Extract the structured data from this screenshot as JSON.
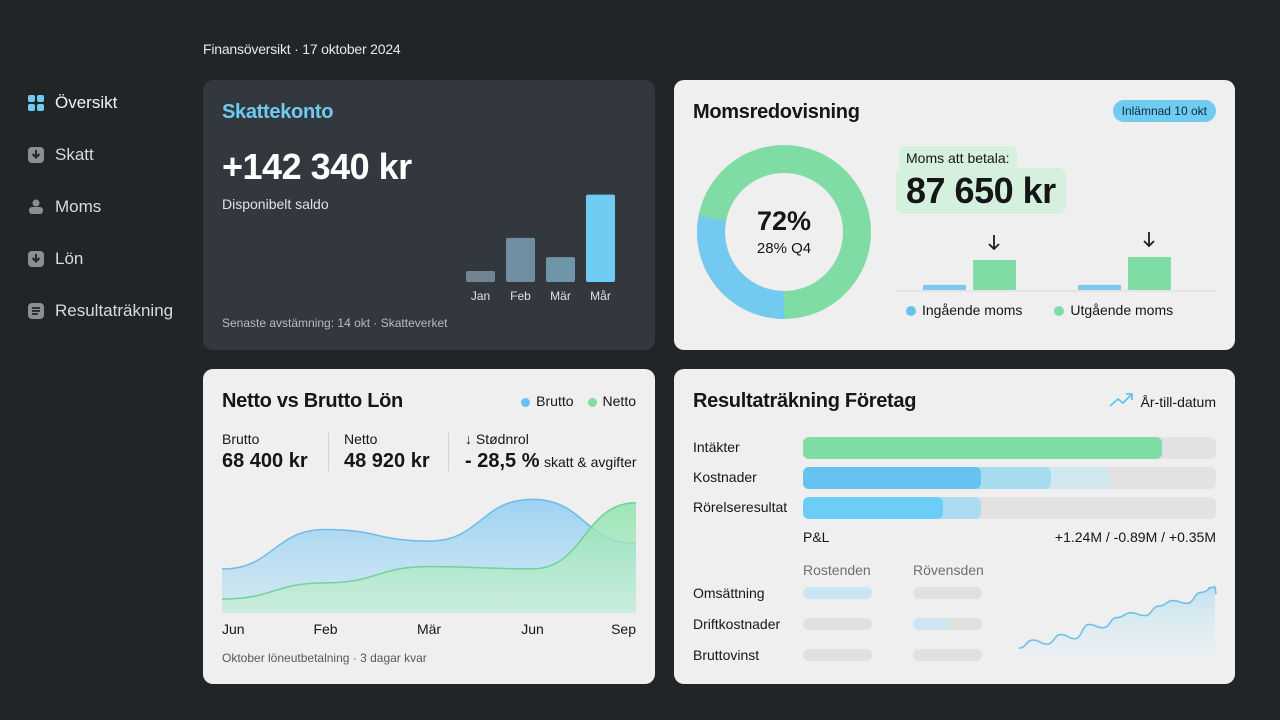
{
  "page_title": "Finansöversikt · 17 oktober 2024",
  "colors": {
    "accent": "#6fcbf2",
    "green": "#7fdca4",
    "blue": "#68c2f0",
    "dark_card": "#33383e",
    "light_card": "#efefef"
  },
  "sidebar": {
    "items": [
      {
        "label": "Översikt",
        "icon": "grid-icon",
        "active": true
      },
      {
        "label": "Skatt",
        "icon": "download-box-icon"
      },
      {
        "label": "Moms",
        "icon": "stamp-icon"
      },
      {
        "label": "Lön",
        "icon": "download-box-icon"
      },
      {
        "label": "Resultaträkning",
        "icon": "document-icon"
      }
    ]
  },
  "skattekonto": {
    "title": "Skattekonto",
    "amount": "+142 340 kr",
    "subtitle": "Disponibelt saldo",
    "footer": "Senaste avstämning: 14 okt · Skatteverket",
    "chart_data": {
      "type": "bar",
      "categories": [
        "Jan",
        "Feb",
        "Mär",
        "Mår"
      ],
      "values": [
        1.2,
        4.8,
        2.7,
        9.5
      ]
    }
  },
  "moms": {
    "title": "Momsredovisning",
    "badge": "Inlämnad 10 okt",
    "donut": {
      "main": "72%",
      "sub": "28% Q4",
      "value_pct": 72
    },
    "label": "Moms att betala:",
    "amount": "87 650 kr",
    "legend": [
      "Ingående moms",
      "Utgående moms"
    ],
    "chart_data": {
      "type": "bar",
      "series": [
        {
          "name": "Ingående moms",
          "values": [
            0.17,
            0.17
          ]
        },
        {
          "name": "Utgående moms",
          "values": [
            1.0,
            1.1
          ]
        }
      ]
    }
  },
  "lon": {
    "title": "Netto vs Brutto Lön",
    "legend": [
      "Brutto",
      "Netto"
    ],
    "stats": [
      {
        "label": "Brutto",
        "value": "68 400 kr"
      },
      {
        "label": "Netto",
        "value": "48 920 kr"
      },
      {
        "label": "↓ Stødnrol",
        "value": "- 28,5 %",
        "suffix": "skatt & avgifter"
      }
    ],
    "x_labels": [
      "Jun",
      "Feb",
      "Mär",
      "Jun",
      "Sep"
    ],
    "footer": "Oktober löneutbetalning · 3 dagar kvar",
    "chart_data": {
      "type": "area",
      "x": [
        "Jun",
        "Feb",
        "Mär",
        "Jun",
        "Sep"
      ],
      "series": [
        {
          "name": "Brutto",
          "values": [
            0.38,
            0.72,
            0.62,
            0.98,
            0.6
          ]
        },
        {
          "name": "Netto",
          "values": [
            0.12,
            0.26,
            0.4,
            0.38,
            0.95
          ]
        }
      ]
    }
  },
  "resultat": {
    "title": "Resultaträkning Företag",
    "ytd_label": "År-till-datum",
    "rows": [
      {
        "label": "Intäkter",
        "fill": 0.87
      },
      {
        "label": "Kostnader",
        "fill": 0.43,
        "fill2": 0.6,
        "fill3": 0.74
      },
      {
        "label": "Rörelseresultat",
        "fill": 0.34,
        "fill2": 0.43
      }
    ],
    "pl_label": "P&L",
    "pl_values": "+1.24M / -0.89M / +0.35M",
    "col_headers": [
      "Rostenden",
      "Rövensden"
    ],
    "sub_rows": [
      "Omsättning",
      "Driftkostnader",
      "Bruttovinst"
    ],
    "chart_data": {
      "type": "line",
      "values": [
        0.1,
        0.22,
        0.16,
        0.3,
        0.24,
        0.45,
        0.4,
        0.55,
        0.62,
        0.58,
        0.72,
        0.8,
        0.76,
        0.92,
        1.0
      ]
    }
  }
}
